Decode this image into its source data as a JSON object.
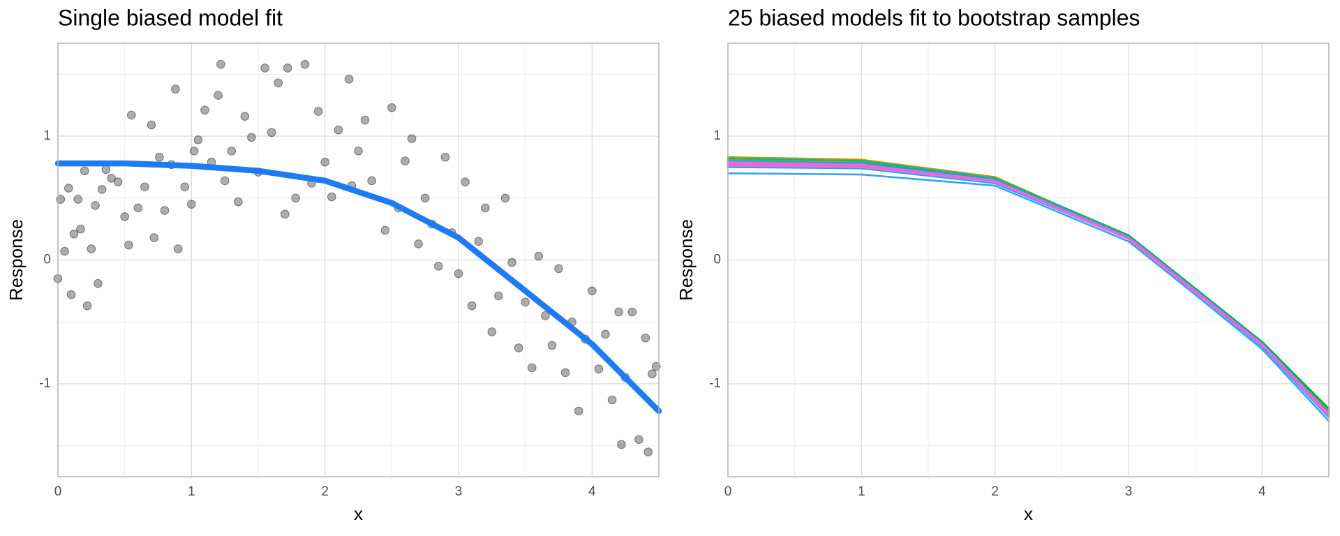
{
  "chart_data": [
    {
      "type": "scatter",
      "title": "Single biased model fit",
      "xlabel": "x",
      "ylabel": "Response",
      "xlim": [
        0,
        4.5
      ],
      "ylim": [
        -1.75,
        1.75
      ],
      "xticks": [
        0,
        1,
        2,
        3,
        4
      ],
      "yticks": [
        -1,
        0,
        1
      ],
      "grid": true,
      "color": "#000000",
      "x": [
        0.0,
        0.02,
        0.05,
        0.08,
        0.1,
        0.12,
        0.15,
        0.17,
        0.2,
        0.22,
        0.25,
        0.28,
        0.3,
        0.33,
        0.36,
        0.4,
        0.45,
        0.5,
        0.53,
        0.55,
        0.6,
        0.65,
        0.7,
        0.72,
        0.76,
        0.8,
        0.85,
        0.88,
        0.9,
        0.95,
        1.0,
        1.02,
        1.05,
        1.1,
        1.15,
        1.2,
        1.22,
        1.25,
        1.3,
        1.35,
        1.4,
        1.45,
        1.5,
        1.55,
        1.6,
        1.65,
        1.7,
        1.72,
        1.78,
        1.85,
        1.9,
        1.95,
        2.0,
        2.05,
        2.1,
        2.18,
        2.2,
        2.25,
        2.3,
        2.35,
        2.45,
        2.5,
        2.55,
        2.6,
        2.65,
        2.7,
        2.75,
        2.8,
        2.85,
        2.9,
        2.95,
        3.0,
        3.05,
        3.1,
        3.15,
        3.2,
        3.25,
        3.3,
        3.35,
        3.4,
        3.45,
        3.5,
        3.55,
        3.6,
        3.65,
        3.7,
        3.75,
        3.8,
        3.85,
        3.9,
        3.95,
        4.0,
        4.05,
        4.1,
        4.15,
        4.2,
        4.22,
        4.25,
        4.3,
        4.35,
        4.4,
        4.42,
        4.45,
        4.48
      ],
      "values": [
        -0.15,
        0.49,
        0.07,
        0.58,
        -0.28,
        0.21,
        0.49,
        0.25,
        0.72,
        -0.37,
        0.09,
        0.44,
        -0.19,
        0.57,
        0.73,
        0.66,
        0.63,
        0.35,
        0.12,
        1.17,
        0.42,
        0.59,
        1.09,
        0.18,
        0.83,
        0.4,
        0.77,
        1.38,
        0.09,
        0.59,
        0.45,
        0.88,
        0.97,
        1.21,
        0.79,
        1.33,
        1.58,
        0.64,
        0.88,
        0.47,
        1.16,
        0.99,
        0.71,
        1.55,
        1.03,
        1.43,
        0.37,
        1.55,
        0.5,
        1.58,
        0.62,
        1.2,
        0.79,
        0.51,
        1.05,
        1.46,
        0.6,
        0.88,
        1.13,
        0.64,
        0.24,
        1.23,
        0.42,
        0.8,
        0.98,
        0.13,
        0.5,
        0.29,
        -0.05,
        0.83,
        0.22,
        -0.11,
        0.63,
        -0.37,
        0.15,
        0.42,
        -0.58,
        -0.29,
        0.5,
        -0.02,
        -0.71,
        -0.34,
        -0.87,
        0.03,
        -0.45,
        -0.69,
        -0.07,
        -0.91,
        -0.5,
        -1.22,
        -0.64,
        -0.25,
        -0.88,
        -0.6,
        -1.13,
        -0.42,
        -1.49,
        -0.95,
        -0.42,
        -1.45,
        -0.63,
        -1.55,
        -0.92,
        -0.86
      ],
      "line": {
        "color": "#1f7bf2",
        "x": [
          0,
          0.5,
          1,
          1.5,
          2,
          2.5,
          3,
          3.5,
          4,
          4.5
        ],
        "values": [
          0.78,
          0.78,
          0.76,
          0.72,
          0.64,
          0.46,
          0.18,
          -0.25,
          -0.68,
          -1.22
        ]
      }
    },
    {
      "type": "line",
      "title": "25 biased models fit to bootstrap samples",
      "xlabel": "x",
      "ylabel": "Response",
      "xlim": [
        0,
        4.5
      ],
      "ylim": [
        -1.75,
        1.75
      ],
      "xticks": [
        0,
        1,
        2,
        3,
        4
      ],
      "yticks": [
        -1,
        0,
        1
      ],
      "grid": true,
      "x": [
        0,
        1,
        2,
        3,
        3.5,
        4,
        4.5
      ],
      "series": [
        {
          "color": "#F8766D",
          "values": [
            0.79,
            0.77,
            0.65,
            0.18,
            -0.25,
            -0.68,
            -1.24
          ]
        },
        {
          "color": "#EE8043",
          "values": [
            0.8,
            0.78,
            0.65,
            0.19,
            -0.24,
            -0.67,
            -1.23
          ]
        },
        {
          "color": "#E38900",
          "values": [
            0.77,
            0.75,
            0.63,
            0.17,
            -0.26,
            -0.69,
            -1.25
          ]
        },
        {
          "color": "#D59100",
          "values": [
            0.83,
            0.81,
            0.67,
            0.19,
            -0.24,
            -0.67,
            -1.22
          ]
        },
        {
          "color": "#C49A00",
          "values": [
            0.78,
            0.76,
            0.64,
            0.18,
            -0.25,
            -0.68,
            -1.24
          ]
        },
        {
          "color": "#B0A100",
          "values": [
            0.81,
            0.79,
            0.66,
            0.19,
            -0.24,
            -0.66,
            -1.21
          ]
        },
        {
          "color": "#99A800",
          "values": [
            0.76,
            0.74,
            0.63,
            0.17,
            -0.26,
            -0.69,
            -1.26
          ]
        },
        {
          "color": "#7CAE00",
          "values": [
            0.79,
            0.77,
            0.65,
            0.19,
            -0.24,
            -0.67,
            -1.22
          ]
        },
        {
          "color": "#53B400",
          "values": [
            0.77,
            0.76,
            0.64,
            0.18,
            -0.25,
            -0.68,
            -1.25
          ]
        },
        {
          "color": "#00B81F",
          "values": [
            0.8,
            0.78,
            0.66,
            0.2,
            -0.23,
            -0.66,
            -1.2
          ]
        },
        {
          "color": "#00BC53",
          "values": [
            0.78,
            0.77,
            0.65,
            0.19,
            -0.24,
            -0.67,
            -1.23
          ]
        },
        {
          "color": "#00BE72",
          "values": [
            0.76,
            0.75,
            0.63,
            0.17,
            -0.26,
            -0.69,
            -1.26
          ]
        },
        {
          "color": "#00C08E",
          "values": [
            0.82,
            0.8,
            0.66,
            0.19,
            -0.24,
            -0.67,
            -1.23
          ]
        },
        {
          "color": "#00C1A8",
          "values": [
            0.79,
            0.77,
            0.64,
            0.18,
            -0.25,
            -0.68,
            -1.24
          ]
        },
        {
          "color": "#00C0C0",
          "values": [
            0.77,
            0.75,
            0.64,
            0.18,
            -0.25,
            -0.68,
            -1.25
          ]
        },
        {
          "color": "#00BDD6",
          "values": [
            0.8,
            0.78,
            0.65,
            0.18,
            -0.25,
            -0.68,
            -1.24
          ]
        },
        {
          "color": "#00B8E7",
          "values": [
            0.78,
            0.76,
            0.63,
            0.17,
            -0.26,
            -0.69,
            -1.25
          ]
        },
        {
          "color": "#00B0F6",
          "values": [
            0.75,
            0.74,
            0.62,
            0.17,
            -0.26,
            -0.7,
            -1.27
          ]
        },
        {
          "color": "#00A5FF",
          "values": [
            0.79,
            0.78,
            0.65,
            0.19,
            -0.24,
            -0.67,
            -1.23
          ]
        },
        {
          "color": "#35A2FF",
          "values": [
            0.7,
            0.69,
            0.6,
            0.15,
            -0.28,
            -0.72,
            -1.3
          ]
        },
        {
          "color": "#9590FF",
          "values": [
            0.77,
            0.75,
            0.63,
            0.17,
            -0.26,
            -0.69,
            -1.26
          ]
        },
        {
          "color": "#C27DFF",
          "values": [
            0.78,
            0.77,
            0.64,
            0.18,
            -0.25,
            -0.68,
            -1.24
          ]
        },
        {
          "color": "#E46CF6",
          "values": [
            0.76,
            0.75,
            0.63,
            0.17,
            -0.26,
            -0.69,
            -1.26
          ]
        },
        {
          "color": "#F962DD",
          "values": [
            0.79,
            0.77,
            0.64,
            0.18,
            -0.25,
            -0.68,
            -1.24
          ]
        },
        {
          "color": "#FF63B9",
          "values": [
            0.77,
            0.76,
            0.64,
            0.18,
            -0.25,
            -0.68,
            -1.25
          ]
        }
      ]
    }
  ]
}
